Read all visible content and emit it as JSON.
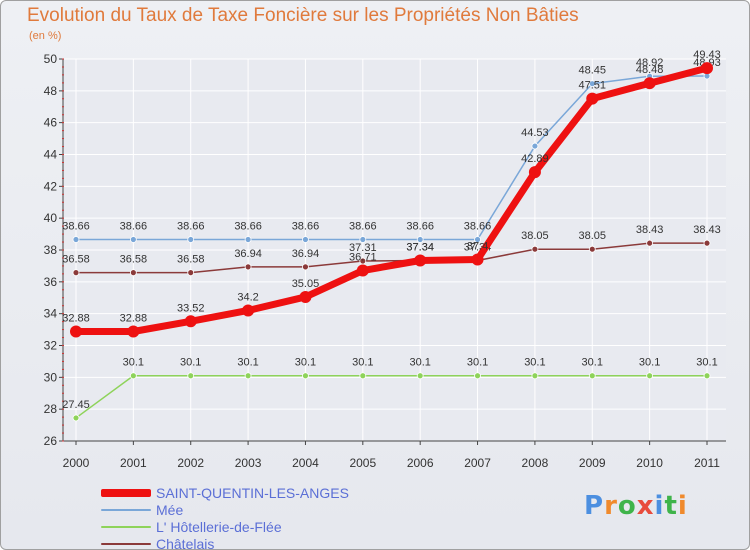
{
  "title": "Evolution du Taux de Taxe Foncière sur les Propriétés Non Bâties",
  "unit_label": "(en %)",
  "colors": {
    "title": "#e07a3c",
    "grid": "#ffffff",
    "axis": "#333333"
  },
  "logo": {
    "text": "Proxiti",
    "letters": [
      "P",
      "r",
      "o",
      "x",
      "i",
      "t",
      "i"
    ],
    "colors": [
      "#4c8fe0",
      "#f08a2c",
      "#3fb44a",
      "#e84b3c",
      "#4c8fe0",
      "#3fb44a",
      "#f08a2c"
    ]
  },
  "chart_data": {
    "type": "line",
    "title": "Evolution du Taux de Taxe Foncière sur les Propriétés Non Bâties",
    "ylabel": "(en %)",
    "xlabel": "",
    "ylim": [
      26,
      50
    ],
    "yticks": [
      26,
      28,
      30,
      32,
      34,
      36,
      38,
      40,
      42,
      44,
      46,
      48,
      50
    ],
    "grid": true,
    "legend_position": "bottom-left",
    "categories": [
      "2000",
      "2001",
      "2002",
      "2003",
      "2004",
      "2005",
      "2006",
      "2007",
      "2008",
      "2009",
      "2010",
      "2011"
    ],
    "series": [
      {
        "name": "Châtelais",
        "color": "#8b3a3a",
        "width": 1.5,
        "marker_radius": 3,
        "values": [
          36.58,
          36.58,
          36.58,
          36.94,
          36.94,
          37.31,
          37.34,
          37.34,
          38.05,
          38.05,
          38.43,
          38.43
        ],
        "labels": [
          "36.58",
          "36.58",
          "36.58",
          "36.94",
          "36.94",
          "37.31",
          "37.34",
          "37.34",
          "38.05",
          "38.05",
          "38.43",
          "38.43"
        ]
      },
      {
        "name": "L' Hôtellerie-de-Flée",
        "color": "#8ed35a",
        "width": 1.5,
        "marker_radius": 3,
        "values": [
          27.45,
          30.1,
          30.1,
          30.1,
          30.1,
          30.1,
          30.1,
          30.1,
          30.1,
          30.1,
          30.1,
          30.1
        ],
        "labels": [
          "27.45",
          "30.1",
          "30.1",
          "30.1",
          "30.1",
          "30.1",
          "30.1",
          "30.1",
          "30.1",
          "30.1",
          "30.1",
          "30.1"
        ]
      },
      {
        "name": "Mée",
        "color": "#7aa7d8",
        "width": 1.5,
        "marker_radius": 3,
        "values": [
          38.66,
          38.66,
          38.66,
          38.66,
          38.66,
          38.66,
          38.66,
          38.66,
          44.53,
          48.45,
          48.92,
          48.93
        ],
        "labels": [
          "38.66",
          "38.66",
          "38.66",
          "38.66",
          "38.66",
          "38.66",
          "38.66",
          "38.66",
          "44.53",
          "48.45",
          "48.92",
          "48.93"
        ]
      },
      {
        "name": "SAINT-QUENTIN-LES-ANGES",
        "color": "#ee1111",
        "width": 7,
        "marker_radius": 6,
        "values": [
          32.88,
          32.88,
          33.52,
          34.2,
          35.05,
          36.71,
          37.34,
          37.4,
          42.89,
          47.51,
          48.48,
          49.43
        ],
        "labels": [
          "32.88",
          "32.88",
          "33.52",
          "34.2",
          "35.05",
          "36.71",
          "37.34",
          "37.4",
          "42.89",
          "47.51",
          "48.48",
          "49.43"
        ]
      }
    ],
    "legend": [
      {
        "name": "SAINT-QUENTIN-LES-ANGES",
        "color": "#ee1111",
        "thickness": 8
      },
      {
        "name": "Mée",
        "color": "#7aa7d8",
        "thickness": 2
      },
      {
        "name": "L' Hôtellerie-de-Flée",
        "color": "#8ed35a",
        "thickness": 2
      },
      {
        "name": "Châtelais",
        "color": "#8b3a3a",
        "thickness": 2
      }
    ]
  }
}
